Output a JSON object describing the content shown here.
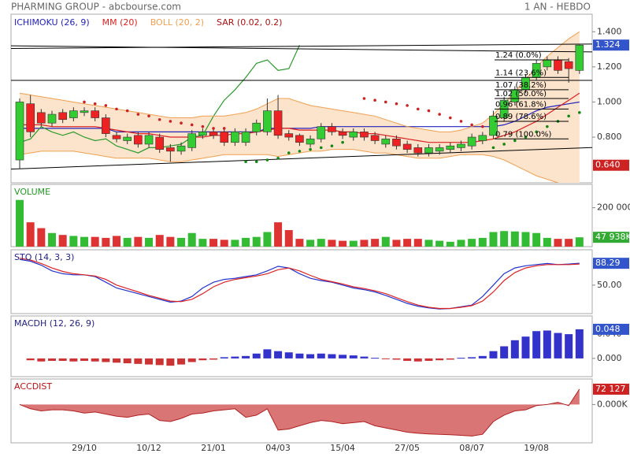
{
  "header": {
    "title": "PHARMING GROUP - abcbourse.com",
    "period": "1 AN - HEBDO"
  },
  "chart_data": [
    {
      "type": "candlestick",
      "categories": [
        null,
        null,
        null,
        null,
        null,
        null,
        "29/10",
        null,
        null,
        null,
        null,
        null,
        "10/12",
        null,
        null,
        null,
        null,
        null,
        "21/01",
        null,
        null,
        null,
        null,
        null,
        "04/03",
        null,
        null,
        null,
        null,
        null,
        "15/04",
        null,
        null,
        null,
        null,
        null,
        "27/05",
        null,
        null,
        null,
        null,
        null,
        "08/07",
        null,
        null,
        null,
        null,
        null,
        "19/08",
        null,
        null,
        null,
        null
      ],
      "open": [
        0.67,
        0.99,
        0.94,
        0.88,
        0.94,
        0.91,
        0.94,
        0.95,
        0.91,
        0.81,
        0.78,
        0.81,
        0.76,
        0.8,
        0.74,
        0.72,
        0.74,
        0.81,
        0.83,
        0.83,
        0.77,
        0.77,
        0.83,
        0.83,
        0.95,
        0.82,
        0.81,
        0.76,
        0.79,
        0.86,
        0.83,
        0.8,
        0.83,
        0.81,
        0.76,
        0.79,
        0.76,
        0.74,
        0.71,
        0.72,
        0.73,
        0.74,
        0.75,
        0.78,
        0.81,
        0.91,
        1.0,
        1.07,
        1.14,
        1.2,
        1.24,
        1.23,
        1.18
      ],
      "high": [
        1.02,
        1.04,
        0.96,
        0.95,
        0.96,
        0.97,
        0.97,
        0.97,
        0.93,
        0.83,
        0.82,
        0.83,
        0.83,
        0.82,
        0.76,
        0.77,
        0.84,
        0.85,
        0.85,
        0.85,
        0.85,
        0.85,
        0.9,
        1.02,
        1.04,
        0.84,
        0.82,
        0.81,
        0.88,
        0.88,
        0.85,
        0.85,
        0.85,
        0.83,
        0.81,
        0.81,
        0.78,
        0.76,
        0.76,
        0.76,
        0.77,
        0.78,
        0.82,
        0.83,
        0.95,
        1.03,
        1.09,
        1.16,
        1.24,
        1.26,
        1.26,
        1.25,
        1.33
      ],
      "low": [
        0.62,
        0.8,
        0.86,
        0.86,
        0.88,
        0.89,
        0.92,
        0.89,
        0.8,
        0.77,
        0.76,
        0.74,
        0.74,
        0.71,
        0.66,
        0.7,
        0.72,
        0.79,
        0.79,
        0.75,
        0.75,
        0.75,
        0.81,
        0.81,
        0.79,
        0.78,
        0.75,
        0.74,
        0.77,
        0.81,
        0.79,
        0.78,
        0.78,
        0.76,
        0.74,
        0.73,
        0.71,
        0.69,
        0.69,
        0.7,
        0.71,
        0.72,
        0.73,
        0.76,
        0.79,
        0.89,
        0.98,
        1.05,
        1.12,
        1.18,
        1.16,
        1.11,
        1.16
      ],
      "close": [
        1.0,
        0.83,
        0.88,
        0.93,
        0.9,
        0.95,
        0.95,
        0.91,
        0.82,
        0.79,
        0.8,
        0.76,
        0.81,
        0.73,
        0.72,
        0.75,
        0.82,
        0.83,
        0.81,
        0.77,
        0.83,
        0.83,
        0.88,
        0.95,
        0.81,
        0.8,
        0.77,
        0.79,
        0.86,
        0.83,
        0.81,
        0.83,
        0.8,
        0.78,
        0.79,
        0.75,
        0.73,
        0.71,
        0.74,
        0.74,
        0.75,
        0.76,
        0.8,
        0.81,
        0.92,
        1.01,
        1.07,
        1.14,
        1.22,
        1.24,
        1.18,
        1.19,
        1.324
      ],
      "up_color": "#33cc33",
      "down_color": "#ee2222",
      "series": [
        {
          "name": "ICHIMOKU (26, 9)",
          "kind": "line",
          "color": "#2222bb",
          "values": [
            0.85,
            0.85,
            0.85,
            0.85,
            0.85,
            0.85,
            0.85,
            0.85,
            0.85,
            0.83,
            0.83,
            0.83,
            0.83,
            0.83,
            0.83,
            0.83,
            0.83,
            0.83,
            0.83,
            0.83,
            0.83,
            0.83,
            0.83,
            0.85,
            0.85,
            0.85,
            0.85,
            0.85,
            0.86,
            0.86,
            0.86,
            0.86,
            0.86,
            0.86,
            0.86,
            0.86,
            0.86,
            0.86,
            0.86,
            0.86,
            0.86,
            0.86,
            0.86,
            0.86,
            0.86,
            0.87,
            0.89,
            0.92,
            0.95,
            0.97,
            0.98,
            0.99,
            1.0
          ],
          "chikou": [
            0.77,
            0.79,
            0.86,
            0.83,
            0.81,
            0.83,
            0.8,
            0.78,
            0.79,
            0.75,
            0.73,
            0.71,
            0.74,
            0.74,
            0.75,
            0.76,
            0.8,
            0.81,
            0.92,
            1.01,
            1.07,
            1.14,
            1.22,
            1.24,
            1.18,
            1.19,
            1.324,
            null,
            null,
            null,
            null,
            null,
            null,
            null,
            null,
            null,
            null,
            null,
            null,
            null,
            null,
            null,
            null,
            null,
            null,
            null,
            null,
            null,
            null,
            null,
            null,
            null,
            null
          ],
          "chikou_color": "#2a9a2a"
        },
        {
          "name": "MM (20)",
          "kind": "line",
          "color": "#dd2222",
          "values": [
            0.87,
            0.87,
            0.87,
            0.86,
            0.86,
            0.86,
            0.86,
            0.86,
            0.85,
            0.84,
            0.83,
            0.82,
            0.82,
            0.81,
            0.8,
            0.8,
            0.8,
            0.8,
            0.81,
            0.81,
            0.82,
            0.82,
            0.83,
            0.84,
            0.85,
            0.85,
            0.84,
            0.84,
            0.84,
            0.84,
            0.83,
            0.83,
            0.82,
            0.82,
            0.81,
            0.8,
            0.79,
            0.78,
            0.77,
            0.77,
            0.77,
            0.77,
            0.77,
            0.78,
            0.79,
            0.81,
            0.83,
            0.86,
            0.89,
            0.93,
            0.97,
            1.01,
            1.05
          ]
        },
        {
          "name": "BOLL (20, 2)",
          "kind": "band",
          "color": "#f0a050",
          "fill": "#fbe3cc",
          "upper": [
            1.05,
            1.04,
            1.03,
            1.02,
            1.01,
            1.0,
            0.99,
            0.98,
            0.97,
            0.96,
            0.95,
            0.94,
            0.93,
            0.92,
            0.91,
            0.91,
            0.91,
            0.92,
            0.92,
            0.92,
            0.93,
            0.94,
            0.96,
            0.99,
            1.02,
            1.02,
            1.0,
            0.98,
            0.97,
            0.96,
            0.95,
            0.94,
            0.93,
            0.92,
            0.9,
            0.88,
            0.86,
            0.85,
            0.84,
            0.83,
            0.83,
            0.84,
            0.86,
            0.88,
            0.93,
            0.99,
            1.06,
            1.13,
            1.2,
            1.26,
            1.31,
            1.36,
            1.4
          ],
          "lower": [
            0.7,
            0.71,
            0.72,
            0.72,
            0.72,
            0.72,
            0.71,
            0.7,
            0.69,
            0.68,
            0.68,
            0.68,
            0.68,
            0.67,
            0.66,
            0.66,
            0.67,
            0.68,
            0.69,
            0.7,
            0.7,
            0.7,
            0.7,
            0.7,
            0.69,
            0.7,
            0.71,
            0.72,
            0.72,
            0.73,
            0.73,
            0.73,
            0.72,
            0.71,
            0.71,
            0.7,
            0.69,
            0.68,
            0.68,
            0.68,
            0.69,
            0.7,
            0.7,
            0.7,
            0.69,
            0.67,
            0.64,
            0.61,
            0.58,
            0.56,
            0.54,
            0.52,
            0.5
          ]
        },
        {
          "name": "SAR (0.02, 0.2)",
          "kind": "dots",
          "color": "#aa1111",
          "dot_color": "#cc2222",
          "low_dot_color": "#118811",
          "values": [
            null,
            null,
            null,
            null,
            null,
            null,
            1.0,
            0.99,
            0.98,
            0.96,
            0.95,
            0.93,
            0.92,
            0.9,
            0.89,
            0.88,
            0.87,
            0.86,
            0.85,
            0.85,
            null,
            0.66,
            0.66,
            0.67,
            0.68,
            0.71,
            0.72,
            0.73,
            0.74,
            0.75,
            0.77,
            null,
            1.02,
            1.01,
            1.0,
            0.99,
            0.98,
            0.96,
            0.95,
            0.93,
            0.91,
            0.89,
            0.87,
            0.86,
            0.74,
            0.76,
            0.78,
            0.8,
            0.83,
            0.86,
            0.89,
            0.92,
            0.94
          ]
        }
      ],
      "trendlines": [
        [
          1.32,
          1.285
        ],
        [
          1.305,
          1.33
        ],
        [
          1.123,
          1.123
        ],
        [
          0.618,
          0.741
        ]
      ],
      "fib": [
        {
          "value": 1.24,
          "label": "1.24  (0.0%)"
        },
        {
          "value": 1.14,
          "label": "1.14  (23.6%)"
        },
        {
          "value": 1.07,
          "label": "1.07  (38.2%)"
        },
        {
          "value": 1.02,
          "label": "1.02  (50.0%)"
        },
        {
          "value": 0.96,
          "label": "0.96  (61.8%)"
        },
        {
          "value": 0.89,
          "label": "0.89  (78.6%)"
        },
        {
          "value": 0.79,
          "label": "0.79  (100.0%)"
        }
      ],
      "ylim": [
        0.54,
        1.5
      ],
      "yticks": [
        {
          "value": 1.4,
          "label": "1.400"
        },
        {
          "value": 1.2,
          "label": "1.200"
        },
        {
          "value": 1.0,
          "label": "1.000"
        },
        {
          "value": 0.8,
          "label": "0.800"
        }
      ],
      "tags": [
        {
          "value": 1.324,
          "color": "#3355cc"
        },
        {
          "value": 0.64,
          "label": "0.640",
          "color": "#cc2222"
        }
      ]
    },
    {
      "type": "volume",
      "title": "VOLUME",
      "title_color": "#229922",
      "up_color": "#33bb33",
      "down_color": "#dd3333",
      "values": [
        240000,
        125000,
        95000,
        70000,
        60000,
        55000,
        50000,
        50000,
        45000,
        55000,
        45000,
        50000,
        45000,
        60000,
        50000,
        45000,
        70000,
        40000,
        40000,
        35000,
        35000,
        45000,
        50000,
        75000,
        125000,
        85000,
        40000,
        35000,
        40000,
        35000,
        30000,
        30000,
        35000,
        40000,
        50000,
        35000,
        40000,
        40000,
        35000,
        30000,
        25000,
        35000,
        40000,
        45000,
        75000,
        80000,
        78000,
        75000,
        70000,
        45000,
        40000,
        40000,
        47938
      ],
      "ylim": [
        0,
        320000
      ],
      "yticks": [
        {
          "value": 200000,
          "label": "200 000"
        }
      ],
      "tags": [
        {
          "value": 47938,
          "label": "47 938K",
          "color": "#33aa33"
        }
      ]
    },
    {
      "type": "line",
      "title": "STO (14, 3, 3)",
      "title_color": "#222288",
      "series": [
        {
          "color": "#2233cc",
          "values": [
            95,
            92,
            85,
            75,
            70,
            68,
            68,
            65,
            55,
            45,
            40,
            35,
            30,
            25,
            20,
            22,
            30,
            45,
            55,
            60,
            62,
            65,
            68,
            75,
            83,
            80,
            70,
            62,
            58,
            55,
            50,
            45,
            42,
            38,
            32,
            25,
            18,
            13,
            10,
            8,
            9,
            12,
            15,
            30,
            50,
            70,
            80,
            84,
            86,
            88,
            86,
            87,
            88.29
          ]
        },
        {
          "color": "#dd2222",
          "values": [
            97,
            94,
            88,
            80,
            74,
            70,
            68,
            66,
            60,
            50,
            44,
            38,
            32,
            27,
            22,
            21,
            25,
            35,
            47,
            55,
            60,
            63,
            66,
            70,
            77,
            80,
            75,
            67,
            60,
            56,
            52,
            47,
            44,
            40,
            35,
            28,
            21,
            15,
            11,
            9,
            9,
            11,
            14,
            22,
            38,
            58,
            72,
            80,
            84,
            86,
            86,
            86,
            87
          ]
        }
      ],
      "ylim": [
        0,
        112
      ],
      "yticks": [
        {
          "value": 50,
          "label": "50.00"
        }
      ],
      "tags": [
        {
          "value": 88.29,
          "color": "#3355cc"
        }
      ]
    },
    {
      "type": "bar",
      "title": "MACDH (12, 26, 9)",
      "title_color": "#222288",
      "pos_color": "#3333cc",
      "neg_color": "#cc3333",
      "values": [
        null,
        -0.003,
        -0.005,
        -0.004,
        -0.004,
        -0.005,
        -0.004,
        -0.005,
        -0.006,
        -0.007,
        -0.008,
        -0.009,
        -0.01,
        -0.011,
        -0.012,
        -0.01,
        -0.006,
        -0.003,
        -0.002,
        0.002,
        0.003,
        0.004,
        0.008,
        0.015,
        0.012,
        0.01,
        0.008,
        0.007,
        0.008,
        0.007,
        0.006,
        0.005,
        0.003,
        0.001,
        -0.001,
        -0.002,
        -0.004,
        -0.005,
        -0.004,
        -0.003,
        -0.002,
        0.001,
        0.002,
        0.004,
        0.012,
        0.02,
        0.03,
        0.036,
        0.045,
        0.046,
        0.042,
        0.04,
        0.048
      ],
      "ylim": [
        -0.03,
        0.07
      ],
      "yticks": [
        {
          "value": 0.04,
          "label": "0.040"
        },
        {
          "value": 0,
          "label": "0.000"
        }
      ],
      "tags": [
        {
          "value": 0.048,
          "color": "#3355cc"
        }
      ]
    },
    {
      "type": "area",
      "title": "ACCDIST",
      "title_color": "#bb1111",
      "color": "#b02020",
      "fill": "#d97575",
      "values": [
        0,
        -20000,
        -30000,
        -25000,
        -25000,
        -30000,
        -40000,
        -35000,
        -45000,
        -55000,
        -60000,
        -50000,
        -45000,
        -75000,
        -80000,
        -65000,
        -45000,
        -40000,
        -30000,
        -25000,
        -20000,
        -60000,
        -50000,
        -20000,
        -120000,
        -115000,
        -100000,
        -85000,
        -75000,
        -80000,
        -90000,
        -85000,
        -80000,
        -100000,
        -110000,
        -120000,
        -130000,
        -135000,
        -138000,
        -140000,
        -142000,
        -145000,
        -148000,
        -140000,
        -80000,
        -50000,
        -30000,
        -25000,
        -5000,
        0,
        10000,
        -5000,
        72127
      ],
      "ylim": [
        -180000,
        120000
      ],
      "yticks": [
        {
          "value": 0,
          "label": "0.000K"
        }
      ],
      "tags": [
        {
          "value": 72127,
          "label": "72 127",
          "color": "#cc2222"
        }
      ]
    }
  ]
}
